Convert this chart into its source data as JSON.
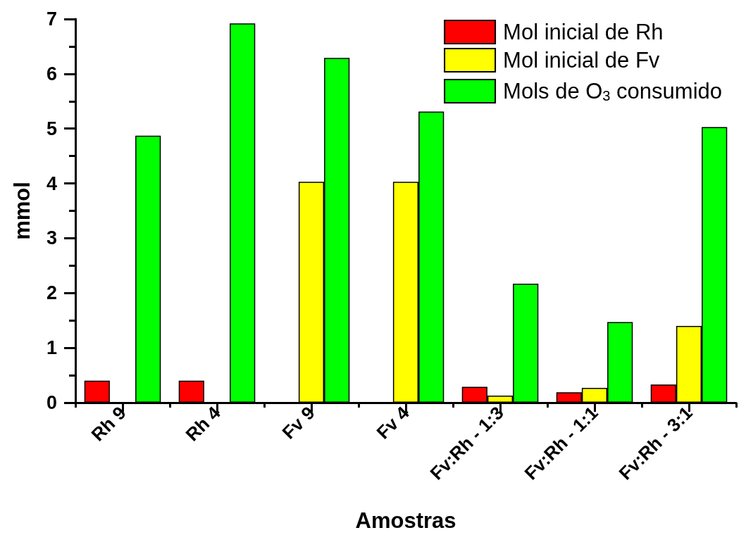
{
  "chart_data": {
    "type": "bar",
    "xlabel": "Amostras",
    "ylabel": "mmol",
    "categories": [
      "Rh 9",
      "Rh 4",
      "Fv 9",
      "Fv 4",
      "Fv:Rh - 1:3",
      "Fv:Rh - 1:1",
      "Fv:Rh - 3:1"
    ],
    "series": [
      {
        "name": "Mol inicial de Rh",
        "color": "#ff0000",
        "values": [
          0.4,
          0.4,
          null,
          null,
          0.29,
          0.19,
          0.33
        ]
      },
      {
        "name": "Mol inicial de Fv",
        "color": "#ffff00",
        "values": [
          null,
          null,
          4.03,
          4.03,
          0.13,
          0.27,
          1.4
        ]
      },
      {
        "name": "Mols de O$_{3}$ consumido",
        "color": "#00ff00",
        "values": [
          4.87,
          6.92,
          6.29,
          5.31,
          2.17,
          1.47,
          5.03
        ]
      }
    ],
    "ylim": [
      0,
      7
    ],
    "yticks": [
      0,
      1,
      2,
      3,
      4,
      5,
      6,
      7
    ],
    "legend": "top right"
  }
}
